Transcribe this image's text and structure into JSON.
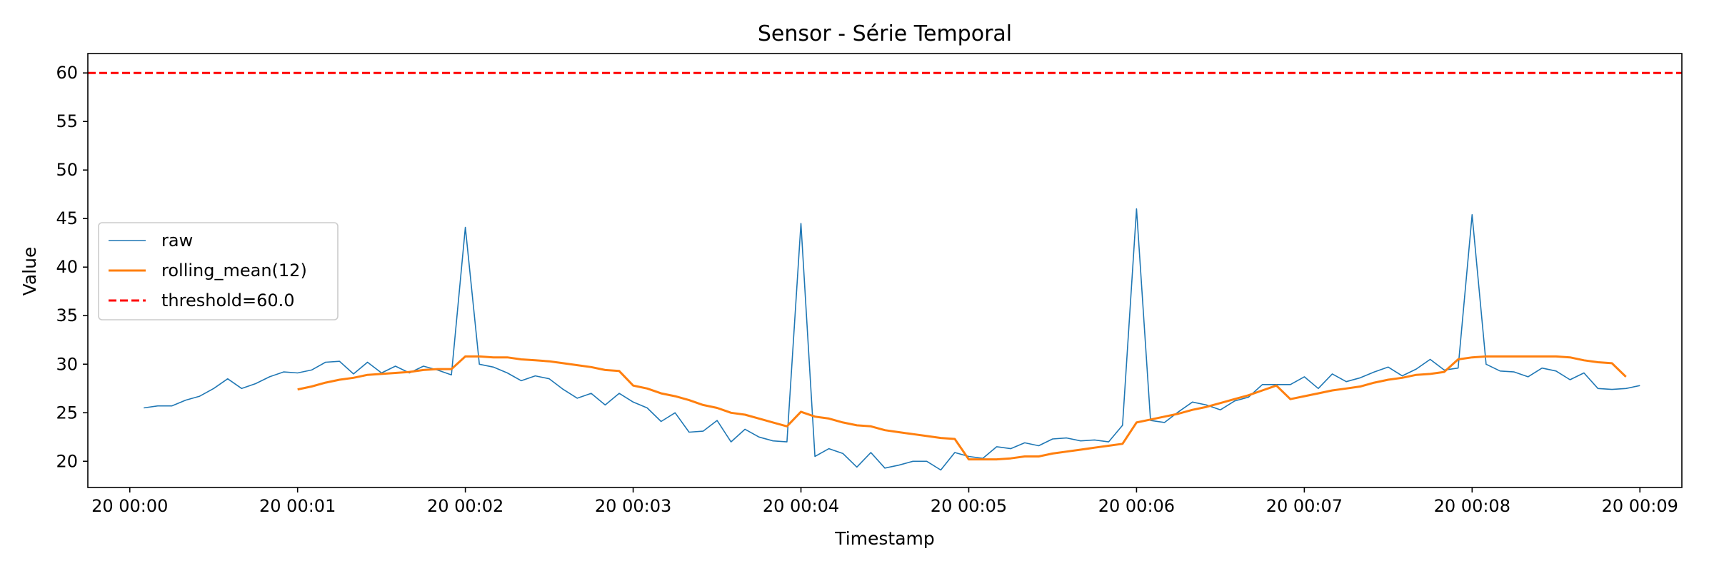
{
  "chart_data": {
    "type": "line",
    "title": "Sensor - Série Temporal",
    "xlabel": "Timestamp",
    "ylabel": "Value",
    "xlim": [
      "20 23:59:45",
      "20 00:09:15"
    ],
    "ylim": [
      17.3,
      62.0
    ],
    "x_tick_labels": [
      "20 00:00",
      "20 00:01",
      "20 00:02",
      "20 00:03",
      "20 00:04",
      "20 00:05",
      "20 00:06",
      "20 00:07",
      "20 00:08",
      "20 00:09"
    ],
    "y_ticks": [
      20,
      25,
      30,
      35,
      40,
      45,
      50,
      55,
      60
    ],
    "x_interval_seconds": 5,
    "x_start": "20 00:00:05",
    "legend_placement": "center-left",
    "grid": false,
    "series": [
      {
        "name": "raw",
        "color": "#1f77b4",
        "style": "solid",
        "values": [
          25.5,
          25.7,
          25.7,
          26.3,
          26.7,
          27.5,
          28.5,
          27.5,
          28.0,
          28.7,
          29.2,
          29.1,
          29.4,
          30.2,
          30.3,
          29.0,
          30.2,
          29.1,
          29.8,
          29.1,
          29.8,
          29.4,
          28.9,
          44.1,
          30.0,
          29.7,
          29.1,
          28.3,
          28.8,
          28.5,
          27.4,
          26.5,
          27.0,
          25.8,
          27.0,
          26.1,
          25.5,
          24.1,
          25.0,
          23.0,
          23.1,
          24.2,
          22.0,
          23.3,
          22.5,
          22.1,
          22.0,
          44.5,
          20.5,
          21.3,
          20.8,
          19.4,
          20.9,
          19.3,
          19.6,
          20.0,
          20.0,
          19.1,
          20.9,
          20.5,
          20.3,
          21.5,
          21.3,
          21.9,
          21.6,
          22.3,
          22.4,
          22.1,
          22.2,
          22.0,
          23.7,
          46.0,
          24.2,
          24.0,
          25.1,
          26.1,
          25.8,
          25.3,
          26.2,
          26.6,
          27.9,
          27.9,
          27.9,
          28.7,
          27.5,
          29.0,
          28.2,
          28.6,
          29.2,
          29.7,
          28.8,
          29.5,
          30.5,
          29.4,
          29.6,
          45.4,
          30.0,
          29.3,
          29.2,
          28.7,
          29.6,
          29.3,
          28.4,
          29.1,
          27.5,
          27.4,
          27.5,
          27.8
        ]
      },
      {
        "name": "rolling_mean(12)",
        "color": "#ff7f0e",
        "style": "solid",
        "values": [
          null,
          null,
          null,
          null,
          null,
          null,
          null,
          null,
          null,
          null,
          null,
          27.4,
          27.7,
          28.1,
          28.4,
          28.6,
          28.9,
          29.0,
          29.1,
          29.2,
          29.4,
          29.5,
          29.5,
          30.8,
          30.8,
          30.7,
          30.7,
          30.5,
          30.4,
          30.3,
          30.1,
          29.9,
          29.7,
          29.4,
          29.3,
          27.8,
          27.5,
          27.0,
          26.7,
          26.3,
          25.8,
          25.5,
          25.0,
          24.8,
          24.4,
          24.0,
          23.6,
          25.1,
          24.6,
          24.4,
          24.0,
          23.7,
          23.6,
          23.2,
          23.0,
          22.8,
          22.6,
          22.4,
          22.3,
          20.2,
          20.2,
          20.2,
          20.3,
          20.5,
          20.5,
          20.8,
          21.0,
          21.2,
          21.4,
          21.6,
          21.8,
          24.0,
          24.3,
          24.6,
          24.9,
          25.3,
          25.6,
          26.0,
          26.4,
          26.8,
          27.3,
          27.8,
          26.4,
          26.7,
          27.0,
          27.3,
          27.5,
          27.7,
          28.1,
          28.4,
          28.6,
          28.9,
          29.0,
          29.2,
          30.5,
          30.7,
          30.8,
          30.8,
          30.8,
          30.8,
          30.8,
          30.8,
          30.7,
          30.4,
          30.2,
          30.1,
          28.7
        ]
      },
      {
        "name": "threshold=60.0",
        "color": "#ff0000",
        "style": "dashed",
        "value": 60.0
      }
    ]
  }
}
